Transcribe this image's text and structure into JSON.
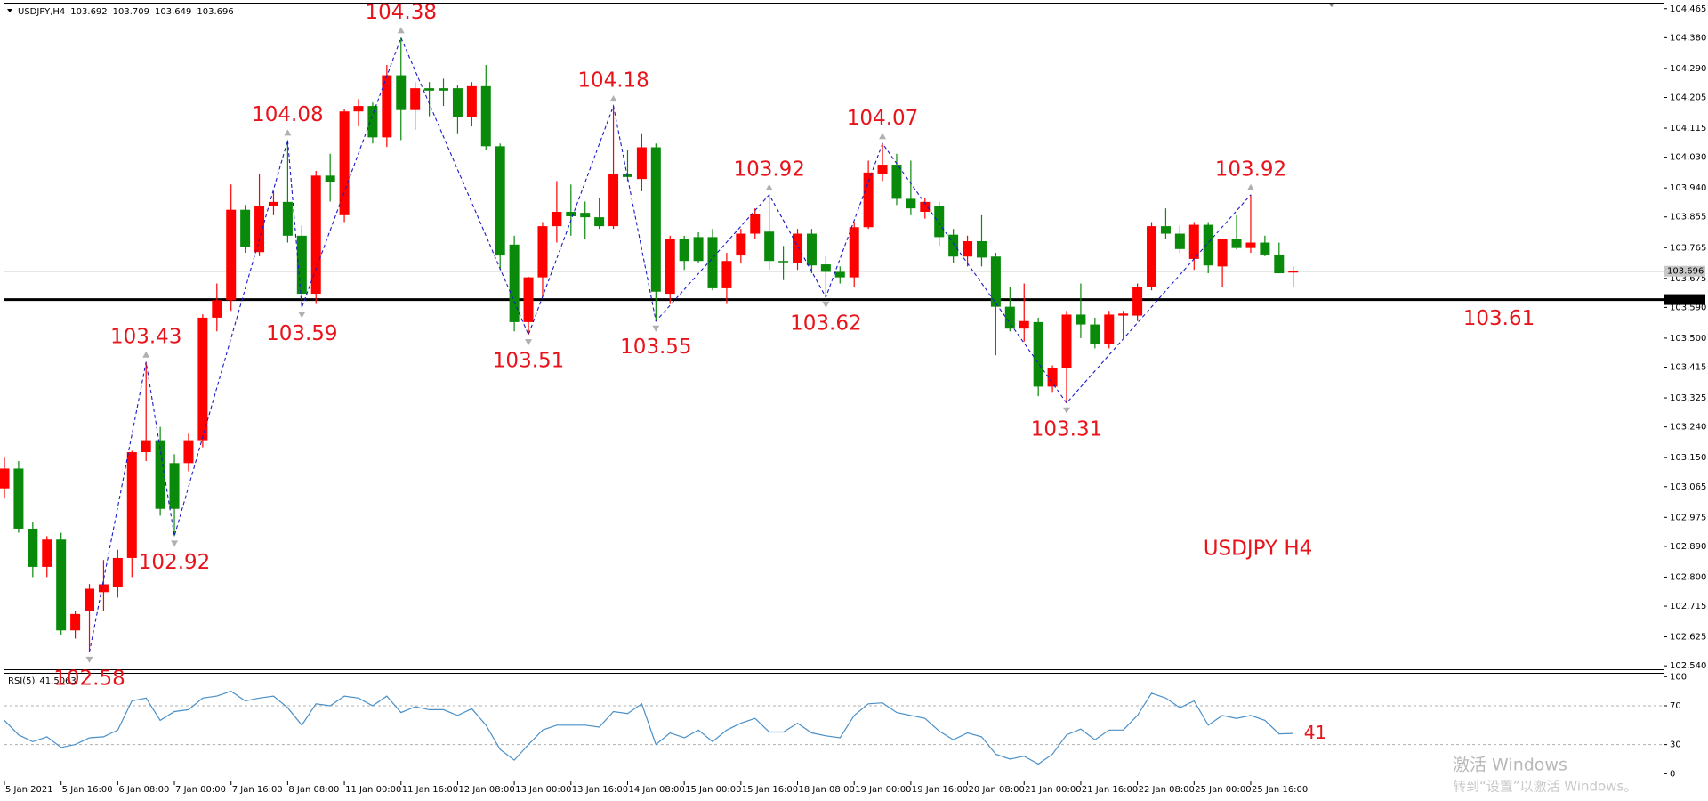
{
  "chart_data": {
    "type": "candlestick",
    "title": "USDJPY,H4",
    "annotation": "USDJPY H4",
    "up_color": "#ff0000",
    "down_color": "#0a8a0a",
    "zigzag_color": "#1a1ac8",
    "label_color": "#e8141b",
    "grid": false,
    "ylim": [
      102.53,
      104.48
    ],
    "yticks": [
      104.465,
      {
        "value": 104.38,
        "label": "104.380"
      },
      {
        "value": 104.29,
        "label": "104.290"
      },
      104.205,
      104.115,
      {
        "value": 104.03,
        "label": "104.030"
      },
      {
        "value": 103.94,
        "label": "103.940"
      },
      103.855,
      103.765,
      103.675,
      {
        "value": 103.59,
        "label": "103.590"
      },
      {
        "value": 103.5,
        "label": "103.500"
      },
      103.415,
      103.325,
      {
        "value": 103.24,
        "label": "103.240"
      },
      {
        "value": 103.15,
        "label": "103.150"
      },
      103.065,
      102.975,
      {
        "value": 102.89,
        "label": "102.890"
      },
      {
        "value": 102.8,
        "label": "102.800"
      },
      102.715,
      102.625,
      {
        "value": 102.54,
        "label": "102.540"
      }
    ],
    "categories": [
      "5 Jan 2021",
      null,
      null,
      null,
      "5 Jan 16:00",
      null,
      null,
      null,
      "6 Jan 08:00",
      null,
      null,
      null,
      "7 Jan 00:00",
      null,
      null,
      null,
      "7 Jan 16:00",
      null,
      null,
      null,
      "8 Jan 08:00",
      null,
      null,
      null,
      "11 Jan 00:00",
      null,
      null,
      null,
      "11 Jan 16:00",
      null,
      null,
      null,
      "12 Jan 08:00",
      null,
      null,
      null,
      "13 Jan 00:00",
      null,
      null,
      null,
      "13 Jan 16:00",
      null,
      null,
      null,
      "14 Jan 08:00",
      null,
      null,
      null,
      "15 Jan 00:00",
      null,
      null,
      null,
      "15 Jan 16:00",
      null,
      null,
      null,
      "18 Jan 08:00",
      null,
      null,
      null,
      "19 Jan 00:00",
      null,
      null,
      null,
      "19 Jan 16:00",
      null,
      null,
      null,
      "20 Jan 08:00",
      null,
      null,
      null,
      "21 Jan 00:00",
      null,
      null,
      null,
      "21 Jan 16:00",
      null,
      null,
      null,
      "22 Jan 08:00",
      null,
      null,
      null,
      "25 Jan 00:00",
      null,
      null,
      null,
      "25 Jan 16:00",
      null,
      null,
      null
    ],
    "candles": [
      [
        103.06,
        103.15,
        103.03,
        103.118
      ],
      [
        103.118,
        103.14,
        102.93,
        102.942
      ],
      [
        102.942,
        102.96,
        102.8,
        102.83
      ],
      [
        102.83,
        102.92,
        102.8,
        102.91
      ],
      [
        102.91,
        102.93,
        102.63,
        102.644
      ],
      [
        102.644,
        102.7,
        102.62,
        102.692
      ],
      [
        102.702,
        102.78,
        102.58,
        102.766
      ],
      [
        102.756,
        102.85,
        102.7,
        102.779
      ],
      [
        102.772,
        102.88,
        102.74,
        102.856
      ],
      [
        102.856,
        103.17,
        102.8,
        103.166
      ],
      [
        103.166,
        103.43,
        103.14,
        103.201
      ],
      [
        103.201,
        103.24,
        102.98,
        103.0
      ],
      [
        103.134,
        103.16,
        102.92,
        103.0
      ],
      [
        103.134,
        103.22,
        103.11,
        103.201
      ],
      [
        103.201,
        103.57,
        103.18,
        103.56
      ],
      [
        103.56,
        103.66,
        103.52,
        103.611
      ],
      [
        103.611,
        103.95,
        103.58,
        103.876
      ],
      [
        103.876,
        103.89,
        103.75,
        103.768
      ],
      [
        103.752,
        103.98,
        103.74,
        103.886
      ],
      [
        103.886,
        103.93,
        103.86,
        103.899
      ],
      [
        103.899,
        104.08,
        103.78,
        103.8
      ],
      [
        103.8,
        103.83,
        103.59,
        103.63
      ],
      [
        103.63,
        103.99,
        103.6,
        103.976
      ],
      [
        103.976,
        104.04,
        103.9,
        103.956
      ],
      [
        103.86,
        104.17,
        103.84,
        104.164
      ],
      [
        104.164,
        104.2,
        104.12,
        104.18
      ],
      [
        104.18,
        104.19,
        104.07,
        104.088
      ],
      [
        104.088,
        104.3,
        104.06,
        104.27
      ],
      [
        104.27,
        104.38,
        104.08,
        104.168
      ],
      [
        104.168,
        104.25,
        104.11,
        104.232
      ],
      [
        104.232,
        104.25,
        104.15,
        104.225
      ],
      [
        104.232,
        104.26,
        104.18,
        104.225
      ],
      [
        104.232,
        104.24,
        104.1,
        104.148
      ],
      [
        104.148,
        104.25,
        104.12,
        104.238
      ],
      [
        104.238,
        104.3,
        104.05,
        104.062
      ],
      [
        104.062,
        104.07,
        103.7,
        103.742
      ],
      [
        103.774,
        103.8,
        103.52,
        103.547
      ],
      [
        103.547,
        103.68,
        103.51,
        103.678
      ],
      [
        103.678,
        103.84,
        103.62,
        103.828
      ],
      [
        103.828,
        103.96,
        103.78,
        103.87
      ],
      [
        103.87,
        103.95,
        103.8,
        103.857
      ],
      [
        103.867,
        103.9,
        103.79,
        103.854
      ],
      [
        103.854,
        103.91,
        103.82,
        103.828
      ],
      [
        103.828,
        104.18,
        103.82,
        103.982
      ],
      [
        103.982,
        104.05,
        103.96,
        103.972
      ],
      [
        103.966,
        104.1,
        103.93,
        104.059
      ],
      [
        104.059,
        104.07,
        103.55,
        103.636
      ],
      [
        103.63,
        103.8,
        103.6,
        103.79
      ],
      [
        103.79,
        103.8,
        103.7,
        103.726
      ],
      [
        103.796,
        103.81,
        103.72,
        103.726
      ],
      [
        103.796,
        103.82,
        103.64,
        103.646
      ],
      [
        103.646,
        103.75,
        103.6,
        103.726
      ],
      [
        103.742,
        103.82,
        103.72,
        103.806
      ],
      [
        103.806,
        103.88,
        103.79,
        103.864
      ],
      [
        103.812,
        103.92,
        103.7,
        103.726
      ],
      [
        103.726,
        103.77,
        103.67,
        103.723
      ],
      [
        103.72,
        103.82,
        103.7,
        103.806
      ],
      [
        103.806,
        103.82,
        103.69,
        103.713
      ],
      [
        103.716,
        103.74,
        103.62,
        103.694
      ],
      [
        103.694,
        103.71,
        103.66,
        103.678
      ],
      [
        103.678,
        103.84,
        103.65,
        103.825
      ],
      [
        103.825,
        104.02,
        103.82,
        103.985
      ],
      [
        103.982,
        104.07,
        103.96,
        104.008
      ],
      [
        104.008,
        104.04,
        103.89,
        103.908
      ],
      [
        103.908,
        104.02,
        103.86,
        103.88
      ],
      [
        103.87,
        103.91,
        103.85,
        103.899
      ],
      [
        103.886,
        103.9,
        103.77,
        103.796
      ],
      [
        103.803,
        103.82,
        103.72,
        103.739
      ],
      [
        103.739,
        103.8,
        103.71,
        103.784
      ],
      [
        103.784,
        103.86,
        103.71,
        103.736
      ],
      [
        103.739,
        103.75,
        103.45,
        103.592
      ],
      [
        103.592,
        103.65,
        103.52,
        103.528
      ],
      [
        103.528,
        103.66,
        103.49,
        103.55
      ],
      [
        103.547,
        103.56,
        103.33,
        103.358
      ],
      [
        103.358,
        103.42,
        103.34,
        103.413
      ],
      [
        103.413,
        103.58,
        103.31,
        103.569
      ],
      [
        103.569,
        103.66,
        103.5,
        103.54
      ],
      [
        103.54,
        103.56,
        103.47,
        103.483
      ],
      [
        103.483,
        103.58,
        103.47,
        103.569
      ],
      [
        103.566,
        103.58,
        103.5,
        103.572
      ],
      [
        103.566,
        103.66,
        103.55,
        103.649
      ],
      [
        103.649,
        103.84,
        103.64,
        103.828
      ],
      [
        103.828,
        103.88,
        103.79,
        103.806
      ],
      [
        103.806,
        103.83,
        103.75,
        103.761
      ],
      [
        103.732,
        103.84,
        103.7,
        103.832
      ],
      [
        103.832,
        103.84,
        103.69,
        103.713
      ],
      [
        103.71,
        103.79,
        103.65,
        103.79
      ],
      [
        103.79,
        103.86,
        103.76,
        103.764
      ],
      [
        103.764,
        103.92,
        103.75,
        103.78
      ],
      [
        103.78,
        103.8,
        103.74,
        103.745
      ],
      [
        103.745,
        103.78,
        103.69,
        103.69
      ],
      [
        103.692,
        103.709,
        103.649,
        103.696
      ]
    ],
    "swings": [
      {
        "index": 6,
        "value": 102.58
      },
      {
        "index": 10,
        "value": 103.43
      },
      {
        "index": 12,
        "value": 102.92
      },
      {
        "index": 20,
        "value": 104.08
      },
      {
        "index": 21,
        "value": 103.59
      },
      {
        "index": 28,
        "value": 104.38
      },
      {
        "index": 37,
        "value": 103.51
      },
      {
        "index": 43,
        "value": 104.18
      },
      {
        "index": 46,
        "value": 103.55
      },
      {
        "index": 54,
        "value": 103.92
      },
      {
        "index": 58,
        "value": 103.62
      },
      {
        "index": 62,
        "value": 104.07
      },
      {
        "index": 75,
        "value": 103.31
      },
      {
        "index": 88,
        "value": 103.92
      }
    ],
    "support": {
      "value": 103.613,
      "label": "103.61"
    },
    "rsi": {
      "name": "RSI(5)",
      "color": "#4a90c8",
      "ylim": [
        -7,
        103
      ],
      "yticks": [
        0,
        30,
        70,
        100
      ],
      "dashed": [
        30,
        70
      ],
      "end_label": 41,
      "values": [
        55,
        40,
        33,
        38,
        27,
        30,
        37,
        38,
        45,
        75,
        78,
        55,
        64,
        66,
        78,
        80,
        85,
        75,
        78,
        80,
        68,
        50,
        72,
        70,
        80,
        78,
        70,
        80,
        63,
        69,
        66,
        66,
        60,
        67,
        50,
        25,
        14,
        30,
        45,
        50,
        50,
        50,
        48,
        64,
        62,
        72,
        30,
        42,
        37,
        45,
        33,
        45,
        52,
        57,
        43,
        43,
        52,
        42,
        39,
        37,
        60,
        72,
        73,
        63,
        60,
        57,
        44,
        35,
        42,
        38,
        20,
        15,
        18,
        10,
        20,
        40,
        46,
        35,
        45,
        45,
        60,
        83,
        78,
        68,
        75,
        50,
        60,
        57,
        60,
        55,
        41,
        41.5063
      ]
    },
    "watermark": [
      "激活 Windows",
      "转到“设置”以激活 Windows。"
    ]
  }
}
